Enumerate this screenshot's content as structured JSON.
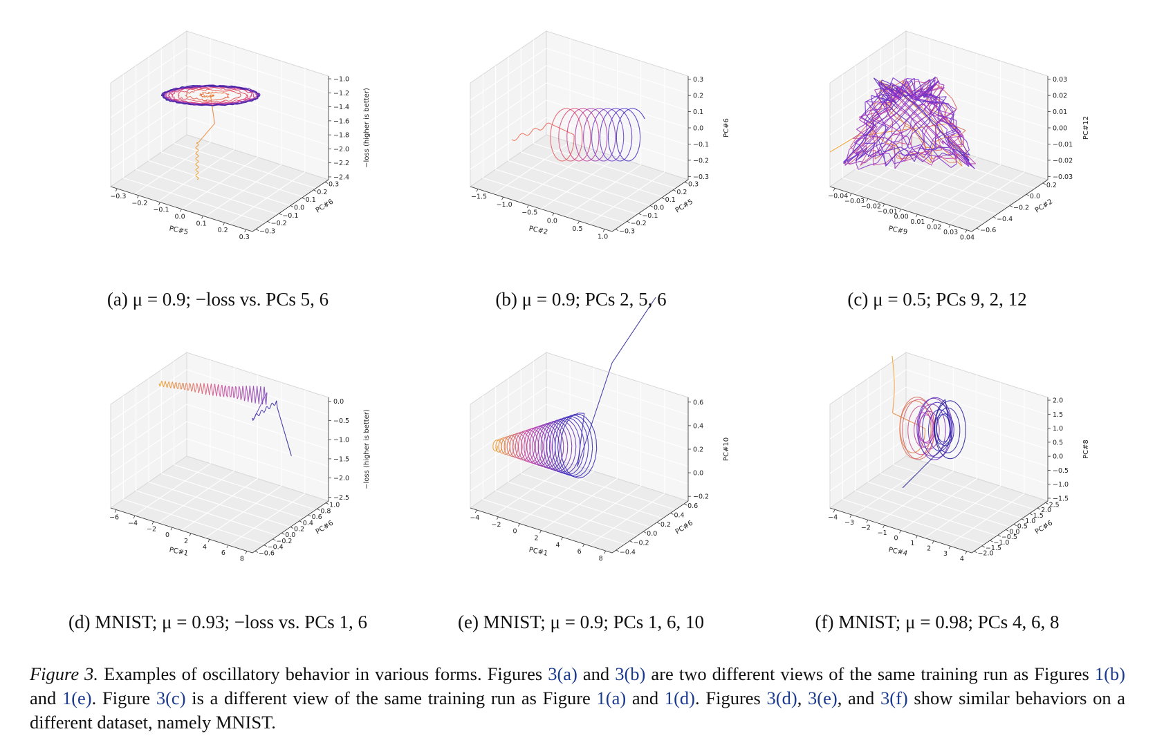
{
  "panels": [
    {
      "id": "a",
      "caption": "(a) μ = 0.9; −loss vs. PCs 5, 6",
      "xlabel": "PC#5",
      "ylabel": "PC#6",
      "zlabel": "−loss (higher is better)",
      "xticks": [
        "−0.3",
        "−0.2",
        "−0.1",
        "0.0",
        "0.1",
        "0.2",
        "0.3"
      ],
      "yticks": [
        "−0.3",
        "−0.2",
        "−0.1",
        "0.0",
        "0.1",
        "0.2",
        "0.3"
      ],
      "zticks": [
        "−1.0",
        "−1.2",
        "−1.4",
        "−1.6",
        "−1.8",
        "−2.0",
        "−2.2",
        "−2.4"
      ],
      "trajectory": "ring",
      "colors": [
        "#f0a020",
        "#e04070",
        "#a040c0",
        "#3020a0"
      ]
    },
    {
      "id": "b",
      "caption": "(b) μ = 0.9; PCs 2, 5, 6",
      "xlabel": "PC#2",
      "ylabel": "PC#5",
      "zlabel": "PC#6",
      "xticks": [
        "−1.5",
        "−1.0",
        "−0.5",
        "0.0",
        "0.5",
        "1.0"
      ],
      "yticks": [
        "−0.3",
        "−0.2",
        "−0.1",
        "0.0",
        "0.1",
        "0.2",
        "0.3"
      ],
      "zticks": [
        "0.3",
        "0.2",
        "0.1",
        "0.0",
        "−0.1",
        "−0.2",
        "−0.3"
      ],
      "trajectory": "spring",
      "colors": [
        "#f07050",
        "#d04090",
        "#7040d0",
        "#4030c0"
      ]
    },
    {
      "id": "c",
      "caption": "(c) μ = 0.5; PCs 9, 2, 12",
      "xlabel": "PC#9",
      "ylabel": "PC#2",
      "zlabel": "PC#12",
      "xticks": [
        "−0.04",
        "−0.03",
        "−0.02",
        "−0.01",
        "0.00",
        "0.01",
        "0.02",
        "0.03",
        "0.04"
      ],
      "yticks": [
        "−0.6",
        "−0.4",
        "−0.2",
        "0.0",
        "0.2"
      ],
      "zticks": [
        "0.03",
        "0.02",
        "0.01",
        "0.00",
        "−0.01",
        "−0.02",
        "−0.03"
      ],
      "trajectory": "tangle",
      "colors": [
        "#f0a020",
        "#c040b0",
        "#8030d0",
        "#6030c0"
      ]
    },
    {
      "id": "d",
      "caption": "(d) MNIST; μ = 0.93; −loss vs. PCs 1, 6",
      "xlabel": "PC#1",
      "ylabel": "PC#6",
      "zlabel": "−loss (higher is better)",
      "xticks": [
        "−6",
        "−4",
        "−2",
        "0",
        "2",
        "4",
        "6",
        "8"
      ],
      "yticks": [
        "−0.6",
        "−0.4",
        "−0.2",
        "0.0",
        "0.2",
        "0.4",
        "0.6",
        "0.8",
        "1.0"
      ],
      "zticks": [
        "0.0",
        "−0.5",
        "−1.0",
        "−1.5",
        "−2.0",
        "−2.5"
      ],
      "trajectory": "zigzag",
      "colors": [
        "#f0a020",
        "#d050a0",
        "#6040c0",
        "#20208a"
      ]
    },
    {
      "id": "e",
      "caption": "(e) MNIST; μ = 0.9; PCs 1, 6, 10",
      "xlabel": "PC#1",
      "ylabel": "PC#6",
      "zlabel": "PC#10",
      "xticks": [
        "−4",
        "−2",
        "0",
        "2",
        "4",
        "6",
        "8"
      ],
      "yticks": [
        "−0.4",
        "−0.2",
        "0.0",
        "0.2",
        "0.4",
        "0.6"
      ],
      "zticks": [
        "0.6",
        "0.4",
        "0.2",
        "0.0",
        "−0.2"
      ],
      "trajectory": "cone",
      "colors": [
        "#f0a020",
        "#c040b0",
        "#4030c0",
        "#20208a"
      ]
    },
    {
      "id": "f",
      "caption": "(f) MNIST; μ = 0.98; PCs 4, 6, 8",
      "xlabel": "PC#4",
      "ylabel": "PC#6",
      "zlabel": "PC#8",
      "xticks": [
        "−4",
        "−3",
        "−2",
        "−1",
        "0",
        "1",
        "2",
        "3",
        "4"
      ],
      "yticks": [
        "−2.0",
        "−1.5",
        "−1.0",
        "−0.5",
        "0.0",
        "0.5",
        "1.0",
        "1.5",
        "2.0",
        "2.5"
      ],
      "zticks": [
        "2.0",
        "1.5",
        "1.0",
        "0.5",
        "0.0",
        "−0.5",
        "−1.0",
        "−1.5"
      ],
      "trajectory": "loops",
      "colors": [
        "#f0a020",
        "#c040b0",
        "#4030c0",
        "#20208a"
      ]
    }
  ],
  "figure_caption": {
    "lead": "Figure 3.",
    "parts": [
      {
        "t": " Examples of oscillatory behavior in various forms. Figures "
      },
      {
        "t": "3(a)",
        "ref": true
      },
      {
        "t": " and "
      },
      {
        "t": "3(b)",
        "ref": true
      },
      {
        "t": " are two different views of the same training run as Figures "
      },
      {
        "t": "1(b)",
        "ref": true
      },
      {
        "t": " and "
      },
      {
        "t": "1(e)",
        "ref": true
      },
      {
        "t": ". Figure "
      },
      {
        "t": "3(c)",
        "ref": true
      },
      {
        "t": " is a different view of the same training run as Figure "
      },
      {
        "t": "1(a)",
        "ref": true
      },
      {
        "t": " and "
      },
      {
        "t": "1(d)",
        "ref": true
      },
      {
        "t": ". Figures "
      },
      {
        "t": "3(d)",
        "ref": true
      },
      {
        "t": ", "
      },
      {
        "t": "3(e)",
        "ref": true
      },
      {
        "t": ", and "
      },
      {
        "t": "3(f)",
        "ref": true
      },
      {
        "t": " show similar behaviors on a different dataset, namely MNIST."
      }
    ]
  }
}
